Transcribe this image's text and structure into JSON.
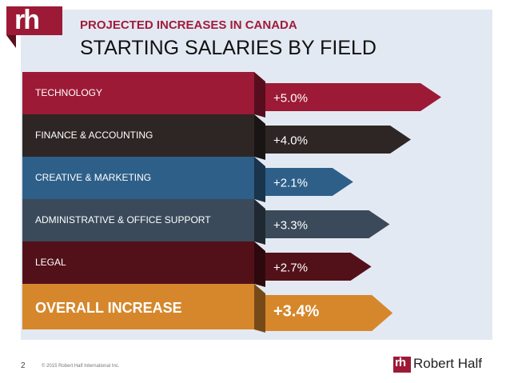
{
  "header": {
    "logo_text": "rh",
    "kicker": "PROJECTED INCREASES IN CANADA",
    "title": "STARTING SALARIES BY FIELD"
  },
  "chart_data": {
    "type": "bar",
    "title": "STARTING SALARIES BY FIELD",
    "subtitle": "PROJECTED INCREASES IN CANADA",
    "categories": [
      "TECHNOLOGY",
      "FINANCE & ACCOUNTING",
      "CREATIVE & MARKETING",
      "ADMINISTRATIVE & OFFICE SUPPORT",
      "LEGAL",
      "OVERALL INCREASE"
    ],
    "values": [
      5.0,
      4.0,
      2.1,
      3.3,
      2.7,
      3.4
    ],
    "value_labels": [
      "+5.0%",
      "+4.0%",
      "+2.1%",
      "+3.3%",
      "+2.7%",
      "+3.4%"
    ],
    "unit": "%",
    "colors": [
      "#9c1a36",
      "#2e2624",
      "#2e5f89",
      "#3a4a5a",
      "#521119",
      "#d6872b"
    ],
    "highlight_last": true
  },
  "footer": {
    "slide_number": "2",
    "copyright": "© 2015 Robert Half International Inc.",
    "brand_logo": "rh",
    "brand_name": "Robert Half"
  }
}
